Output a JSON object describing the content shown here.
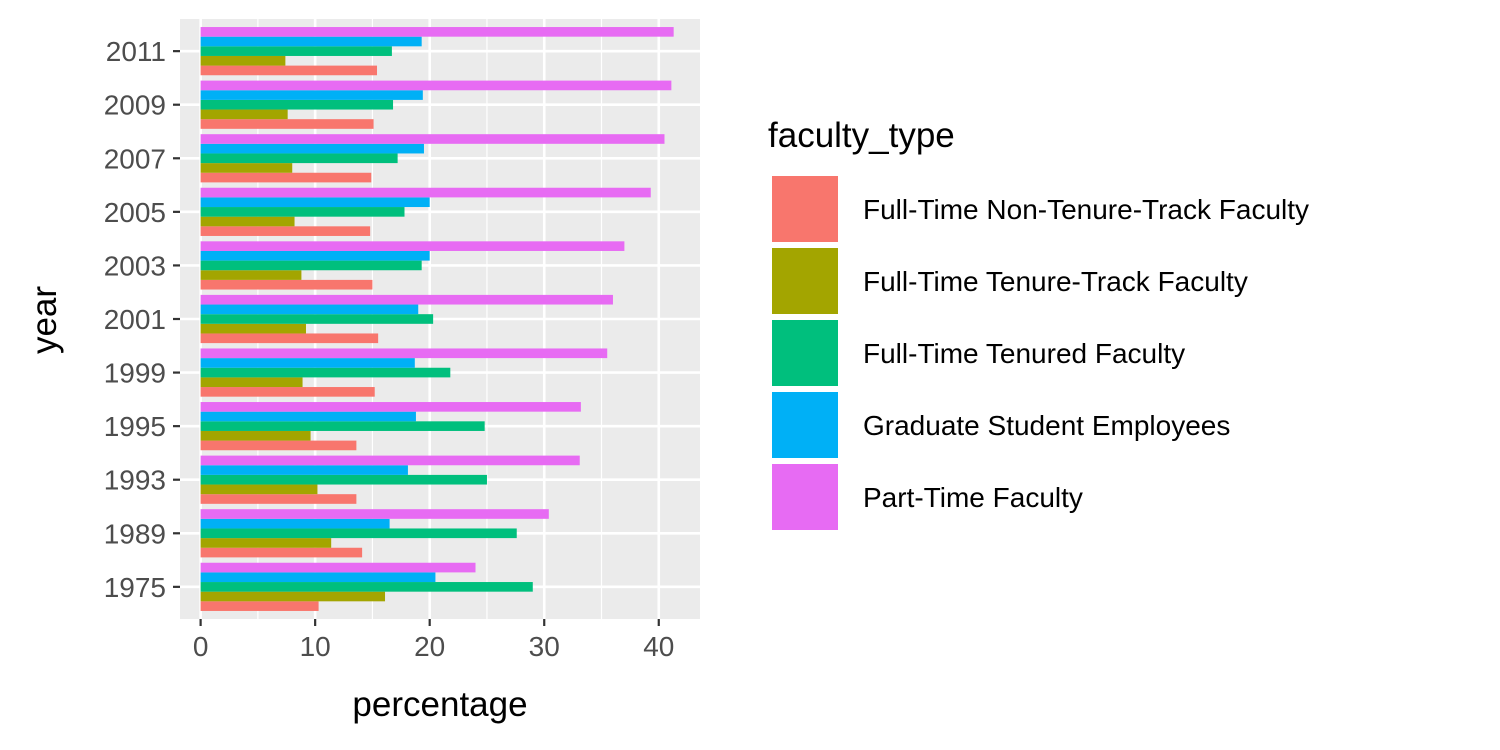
{
  "chart_data": {
    "type": "bar",
    "orientation": "horizontal",
    "position": "dodge",
    "xlabel": "percentage",
    "ylabel": "year",
    "xlim": [
      -1.8,
      43.6
    ],
    "xticks": [
      0,
      10,
      20,
      30,
      40
    ],
    "x_minor_gridlines": true,
    "grid": true,
    "panel_background": "#ebebeb",
    "legend": {
      "title": "faculty_type",
      "placement": "right"
    },
    "categories": [
      "1975",
      "1989",
      "1993",
      "1995",
      "1999",
      "2001",
      "2003",
      "2005",
      "2007",
      "2009",
      "2011"
    ],
    "series": [
      {
        "name": "Full-Time Non-Tenure-Track Faculty",
        "color": "#F8766D",
        "values": [
          10.3,
          14.1,
          13.6,
          13.6,
          15.2,
          15.5,
          15.0,
          14.8,
          14.9,
          15.1,
          15.4
        ]
      },
      {
        "name": "Full-Time Tenure-Track Faculty",
        "color": "#A3A500",
        "values": [
          16.1,
          11.4,
          10.2,
          9.6,
          8.9,
          9.2,
          8.8,
          8.2,
          8.0,
          7.6,
          7.4
        ]
      },
      {
        "name": "Full-Time Tenured Faculty",
        "color": "#00BF7D",
        "values": [
          29.0,
          27.6,
          25.0,
          24.8,
          21.8,
          20.3,
          19.3,
          17.8,
          17.2,
          16.8,
          16.7
        ]
      },
      {
        "name": "Graduate Student Employees",
        "color": "#00B0F6",
        "values": [
          20.5,
          16.5,
          18.1,
          18.8,
          18.7,
          19.0,
          20.0,
          20.0,
          19.5,
          19.4,
          19.3
        ]
      },
      {
        "name": "Part-Time Faculty",
        "color": "#E76BF3",
        "values": [
          24.0,
          30.4,
          33.1,
          33.2,
          35.5,
          36.0,
          37.0,
          39.3,
          40.5,
          41.1,
          41.3
        ]
      }
    ]
  }
}
